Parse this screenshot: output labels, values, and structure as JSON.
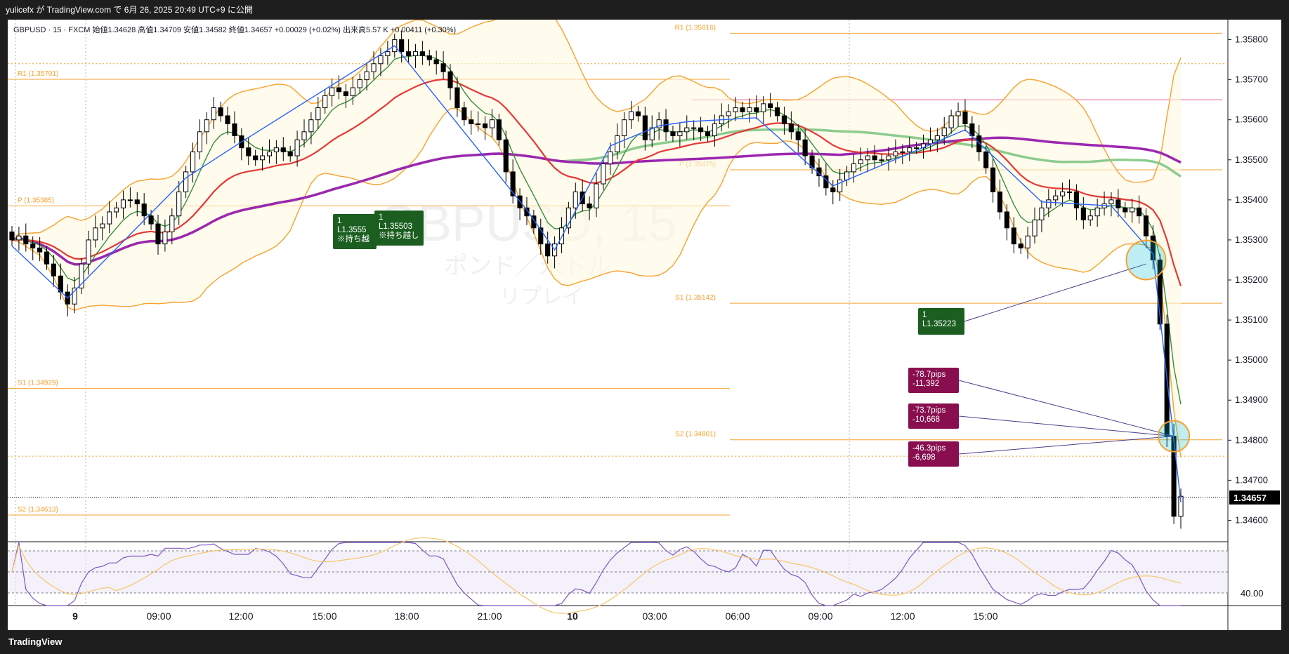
{
  "header": {
    "publish_text": "yulicefx が TradingView.com で 6月 26, 2025 20:49 UTC+9 に公開"
  },
  "legend": {
    "symbol_line": "GBPUSD · 15 · FXCM  始値1.34628  高値1.34709  安値1.34582  終値1.34657  +0.00029 (+0.02%)  出来高5.57 K  +0.00411 (+0.30%)"
  },
  "watermark": {
    "line1": "GBPUSD, 15",
    "line2": "ポンド／米ドル",
    "line3": "リプレイ"
  },
  "footer": {
    "brand": "TradingView"
  },
  "colors": {
    "up": "#ffffff",
    "down": "#000000",
    "pivot": "#f7a230",
    "bb": "#f7a230",
    "ema_fast": "#388e3c",
    "ema_mid": "#e53935",
    "sma_green": "#81c784",
    "sma_purple": "#9c27b0",
    "zigzag": "#2962ff",
    "rsi": "#7e57c2",
    "rsi_sig": "#f7c56b",
    "trade_green": "#1b5e20",
    "trade_red": "#880e4f"
  },
  "chart_data": {
    "type": "candlestick",
    "symbol": "GBPUSD",
    "timeframe": "15",
    "ylim": [
      1.3455,
      1.3585
    ],
    "y_ticks": [
      "1.35800",
      "1.35700",
      "1.35600",
      "1.35500",
      "1.35400",
      "1.35300",
      "1.35200",
      "1.35100",
      "1.35000",
      "1.34900",
      "1.34800",
      "1.34700",
      "1.34600"
    ],
    "last_price": "1.34657",
    "x_ticks": [
      "9",
      "09:00",
      "12:00",
      "15:00",
      "18:00",
      "21:00",
      "10",
      "03:00",
      "06:00",
      "09:00",
      "12:00",
      "15:00"
    ],
    "pivot_levels": [
      {
        "label": "R1 (1.35701)",
        "value": 1.35701,
        "day": 1
      },
      {
        "label": "P (1.35385)",
        "value": 1.35385,
        "day": 1
      },
      {
        "label": "S1 (1.34929)",
        "value": 1.34929,
        "day": 1
      },
      {
        "label": "S2 (1.34613)",
        "value": 1.34613,
        "day": 1
      },
      {
        "label": "R1 (1.35816)",
        "value": 1.35816,
        "day": 2
      },
      {
        "label": "P (1.35475)",
        "value": 1.35475,
        "day": 2
      },
      {
        "label": "S1 (1.35142)",
        "value": 1.35142,
        "day": 2
      },
      {
        "label": "S2 (1.34801)",
        "value": 1.34801,
        "day": 2
      }
    ],
    "trades": [
      {
        "qty": "1",
        "price": "L1.3555",
        "note": "※持ち越"
      },
      {
        "qty": "1",
        "price": "L1.35503",
        "note": "※持ち越し"
      },
      {
        "qty": "1",
        "price": "L1.35223",
        "note": ""
      }
    ],
    "results": [
      {
        "pips": "-78.7pips",
        "amount": "-11,392"
      },
      {
        "pips": "-73.7pips",
        "amount": "-10,668"
      },
      {
        "pips": "-46.3pips",
        "amount": "-6,698"
      }
    ],
    "rsi": {
      "label": "40.00"
    },
    "closes": [
      1.353,
      1.3531,
      1.3529,
      1.3528,
      1.3527,
      1.3524,
      1.3521,
      1.3517,
      1.3514,
      1.3518,
      1.3524,
      1.353,
      1.3533,
      1.3534,
      1.3537,
      1.3538,
      1.354,
      1.354,
      1.3539,
      1.3536,
      1.3534,
      1.3529,
      1.3532,
      1.3536,
      1.3542,
      1.3547,
      1.3552,
      1.3557,
      1.356,
      1.3563,
      1.3561,
      1.3559,
      1.3556,
      1.3553,
      1.3551,
      1.355,
      1.3551,
      1.3552,
      1.3553,
      1.3552,
      1.3551,
      1.3555,
      1.3557,
      1.356,
      1.3563,
      1.3566,
      1.3568,
      1.3567,
      1.3566,
      1.3568,
      1.357,
      1.3572,
      1.3574,
      1.3576,
      1.3577,
      1.358,
      1.3577,
      1.3576,
      1.3577,
      1.3576,
      1.3575,
      1.3574,
      1.3572,
      1.3568,
      1.3563,
      1.356,
      1.3559,
      1.3559,
      1.3558,
      1.356,
      1.3555,
      1.3547,
      1.3541,
      1.3538,
      1.3536,
      1.3533,
      1.3529,
      1.3526,
      1.3529,
      1.3533,
      1.3538,
      1.3542,
      1.3539,
      1.3538,
      1.3544,
      1.3549,
      1.3552,
      1.3556,
      1.356,
      1.3562,
      1.3561,
      1.3555,
      1.3558,
      1.356,
      1.3557,
      1.3556,
      1.3557,
      1.3558,
      1.3558,
      1.3557,
      1.3556,
      1.3559,
      1.3561,
      1.3562,
      1.3563,
      1.3562,
      1.3563,
      1.3562,
      1.3564,
      1.3563,
      1.3561,
      1.3559,
      1.3557,
      1.3555,
      1.3551,
      1.3548,
      1.3546,
      1.3543,
      1.3542,
      1.3545,
      1.3547,
      1.3549,
      1.355,
      1.3551,
      1.355,
      1.355,
      1.3551,
      1.3552,
      1.3552,
      1.3553,
      1.3553,
      1.3554,
      1.3555,
      1.3556,
      1.3558,
      1.3561,
      1.3562,
      1.3559,
      1.3556,
      1.3552,
      1.3548,
      1.3542,
      1.3537,
      1.3533,
      1.3529,
      1.3528,
      1.3531,
      1.3535,
      1.3538,
      1.354,
      1.3541,
      1.3542,
      1.3542,
      1.3538,
      1.3535,
      1.3536,
      1.3538,
      1.3539,
      1.354,
      1.3538,
      1.3537,
      1.3538,
      1.3536,
      1.3531,
      1.3525,
      1.3509,
      1.3481,
      1.3461,
      1.3466
    ]
  }
}
